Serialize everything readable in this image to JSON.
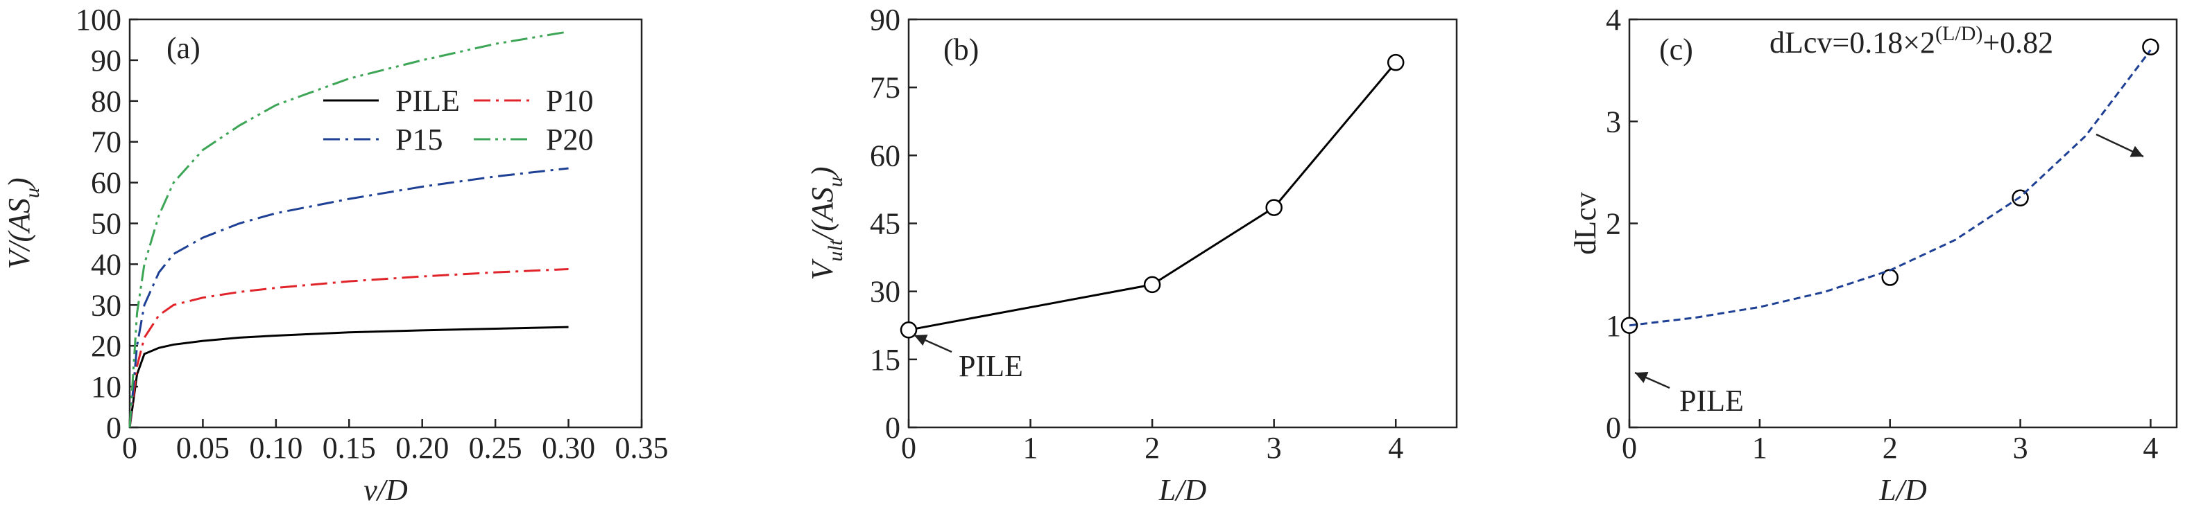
{
  "chart_data": [
    {
      "type": "line",
      "panel_label": "(a)",
      "xlabel": "v/D",
      "ylabel": [
        {
          "text": "V/(AS"
        },
        {
          "text": "u",
          "style": "sub"
        },
        {
          "text": ")"
        }
      ],
      "xlim": [
        0,
        0.35
      ],
      "xticks": [
        0,
        0.05,
        {
          "value": 0.1,
          "label": "0.10"
        },
        0.15,
        {
          "value": 0.2,
          "label": "0.20"
        },
        0.25,
        {
          "value": 0.3,
          "label": "0.30"
        },
        0.35
      ],
      "ylim": [
        0,
        100
      ],
      "yticks": [
        0,
        10,
        20,
        30,
        40,
        50,
        60,
        70,
        80,
        90,
        100
      ],
      "legend": "upper center",
      "series": [
        {
          "name": "PILE",
          "color": "#000000",
          "dash": "solid",
          "x": [
            0,
            0.005,
            0.01,
            0.02,
            0.03,
            0.05,
            0.075,
            0.1,
            0.15,
            0.2,
            0.25,
            0.3
          ],
          "values": [
            0,
            13,
            18,
            19.5,
            20.3,
            21.2,
            22,
            22.5,
            23.3,
            23.8,
            24.2,
            24.6
          ]
        },
        {
          "name": "P10",
          "color": "#e0242a",
          "dash": "dashdot",
          "x": [
            0,
            0.005,
            0.01,
            0.02,
            0.03,
            0.05,
            0.075,
            0.1,
            0.15,
            0.2,
            0.25,
            0.3
          ],
          "values": [
            0,
            15,
            22,
            27.5,
            30,
            31.8,
            33.2,
            34.2,
            35.8,
            37,
            38,
            38.8
          ]
        },
        {
          "name": "P15",
          "color": "#1d3f94",
          "dash": "dashdot",
          "x": [
            0,
            0.005,
            0.01,
            0.02,
            0.03,
            0.05,
            0.075,
            0.1,
            0.15,
            0.2,
            0.25,
            0.3
          ],
          "values": [
            0,
            20,
            30,
            38,
            42.5,
            46.5,
            50,
            52.5,
            56,
            59,
            61.5,
            63.5
          ]
        },
        {
          "name": "P20",
          "color": "#3da556",
          "dash": "dashdotdot",
          "x": [
            0,
            0.005,
            0.01,
            0.02,
            0.03,
            0.05,
            0.075,
            0.1,
            0.15,
            0.2,
            0.25,
            0.3
          ],
          "values": [
            0,
            28,
            40,
            52,
            60,
            68,
            74,
            79,
            85.5,
            90,
            94,
            97
          ]
        }
      ]
    },
    {
      "type": "line",
      "panel_label": "(b)",
      "xlabel": "L/D",
      "ylabel": [
        {
          "text": "V"
        },
        {
          "text": "ult",
          "style": "sub"
        },
        {
          "text": "/(AS"
        },
        {
          "text": "u",
          "style": "sub"
        },
        {
          "text": ")"
        }
      ],
      "xlim": [
        0,
        4.5
      ],
      "xticks": [
        0,
        1,
        2,
        3,
        4
      ],
      "ylim": [
        0,
        90
      ],
      "yticks": [
        0,
        15,
        30,
        45,
        60,
        75,
        90
      ],
      "annotation": "PILE",
      "series": [
        {
          "color": "#000000",
          "dash": "solid",
          "marker": "circle",
          "x": [
            0,
            2,
            3,
            4
          ],
          "values": [
            21.5,
            31.5,
            48.5,
            80.5
          ]
        }
      ]
    },
    {
      "type": "line",
      "panel_label": "(c)",
      "xlabel": "L/D",
      "ylabel": [
        {
          "text": "dLcv"
        }
      ],
      "xlim": [
        0,
        4.2
      ],
      "xticks": [
        0,
        1,
        2,
        3,
        4
      ],
      "ylim": [
        0,
        4
      ],
      "yticks": [
        0,
        1,
        2,
        3,
        4
      ],
      "annotation": "PILE",
      "equation": [
        {
          "text": "dLcv=0.18×2"
        },
        {
          "text": "(L/D)",
          "style": "sup"
        },
        {
          "text": "+0.82"
        }
      ],
      "series": [
        {
          "color": "#000000",
          "dash": "none",
          "marker": "circle",
          "x": [
            0,
            2,
            3,
            4
          ],
          "values": [
            1.0,
            1.47,
            2.25,
            3.73
          ]
        },
        {
          "color": "#1d3f94",
          "dash": "dashed",
          "x": [
            0,
            0.5,
            1,
            1.5,
            2,
            2.5,
            3,
            3.5,
            4
          ],
          "values": [
            1.0,
            1.075,
            1.18,
            1.329,
            1.54,
            1.838,
            2.26,
            2.856,
            3.7
          ]
        }
      ]
    }
  ]
}
